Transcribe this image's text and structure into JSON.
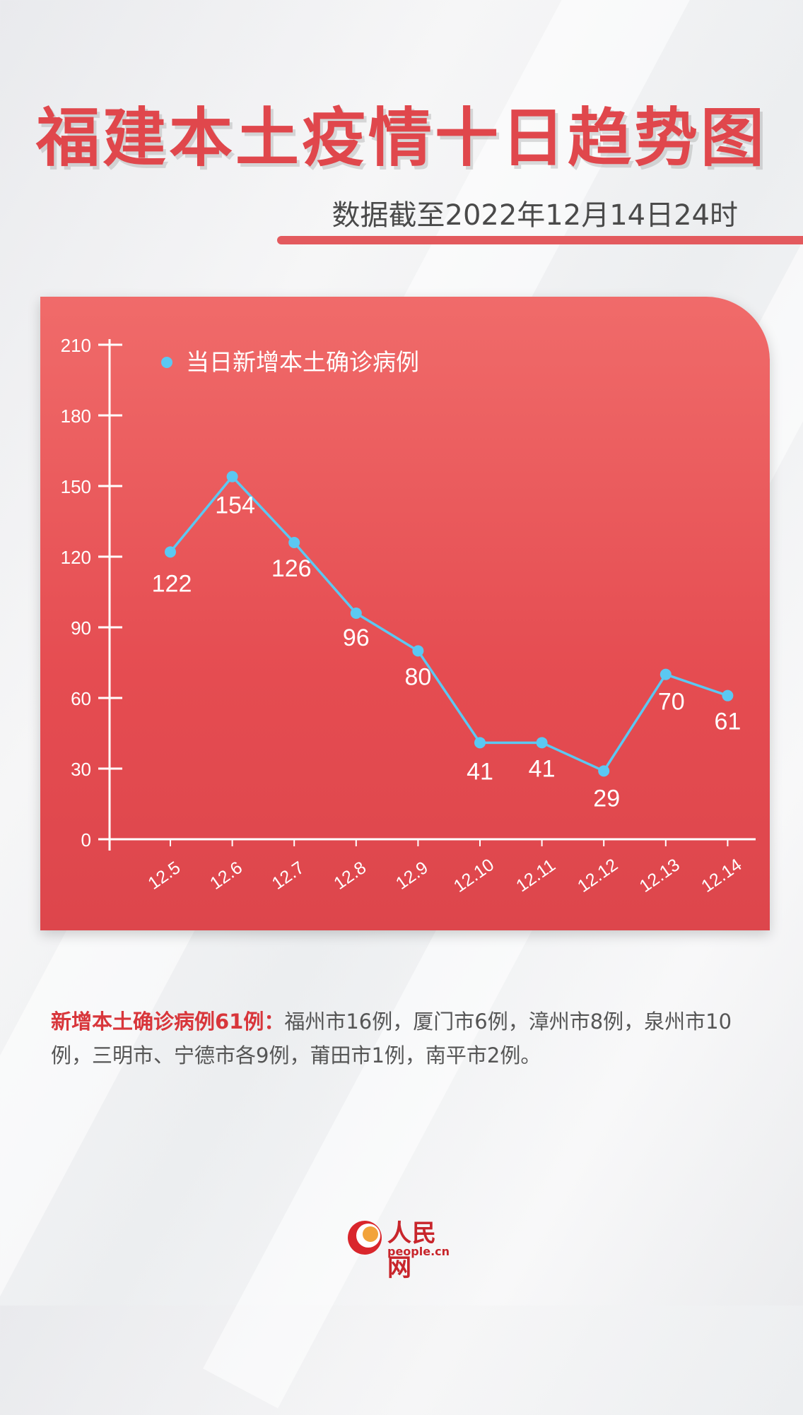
{
  "title": "福建本土疫情十日趋势图",
  "subtitle": "数据截至2022年12月14日24时",
  "chart_data": {
    "type": "line",
    "title": "",
    "xlabel": "",
    "ylabel": "",
    "categories": [
      "12.5",
      "12.6",
      "12.7",
      "12.8",
      "12.9",
      "12.10",
      "12.11",
      "12.12",
      "12.13",
      "12.14"
    ],
    "series": [
      {
        "name": "当日新增本土确诊病例",
        "values": [
          122,
          154,
          126,
          96,
          80,
          41,
          41,
          29,
          70,
          61
        ]
      }
    ],
    "ylim": [
      0,
      210
    ],
    "yticks": [
      "0",
      "30",
      "60",
      "90",
      "120",
      "150",
      "180",
      "210"
    ],
    "grid": false,
    "legend": "top-left",
    "colors": {
      "line": "#5bc8f2",
      "marker": "#5bc8f2",
      "axis": "#ffffff",
      "text": "#ffffff",
      "panel": "#e8565a"
    }
  },
  "note": {
    "highlight": "新增本土确诊病例61例：",
    "text": "福州市16例，厦门市6例，漳州市8例，泉州市10例，三明市、宁德市各9例，莆田市1例，南平市2例。"
  },
  "logo": {
    "cn": "人民网",
    "en": "people.cn"
  }
}
